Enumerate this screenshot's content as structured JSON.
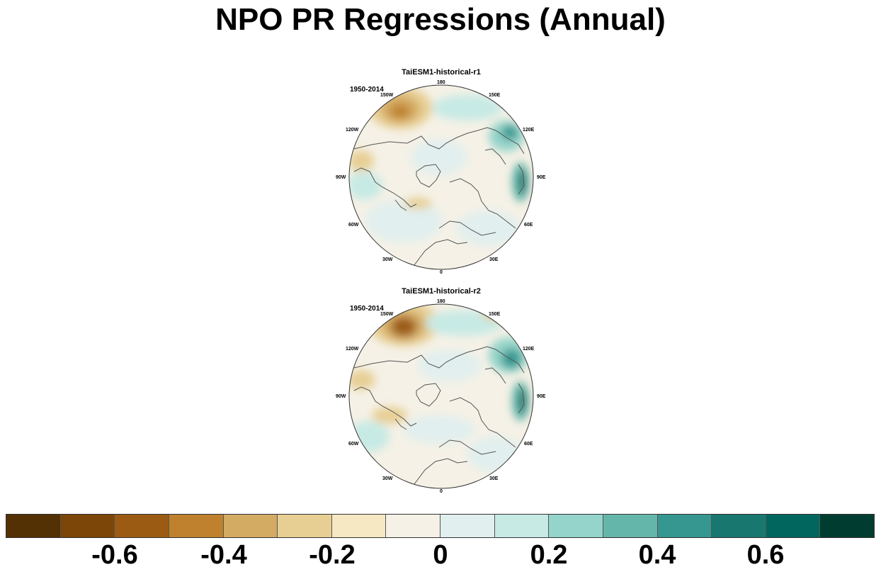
{
  "title": "NPO PR Regressions (Annual)",
  "panels": [
    {
      "title": "TaiESM1-historical-r1",
      "period": "1950-2014",
      "lon_labels": [
        "180",
        "150E",
        "120E",
        "90E",
        "60E",
        "30E",
        "0",
        "30W",
        "60W",
        "90W",
        "120W",
        "150W"
      ]
    },
    {
      "title": "TaiESM1-historical-r2",
      "period": "1950-2014",
      "lon_labels": [
        "180",
        "150E",
        "120E",
        "90E",
        "60E",
        "30E",
        "0",
        "30W",
        "60W",
        "90W",
        "120W",
        "150W"
      ]
    }
  ],
  "colorbar": {
    "colors": [
      "#543005",
      "#7b4607",
      "#9c5b13",
      "#bf812d",
      "#d4ab63",
      "#e7cf94",
      "#f6e8c3",
      "#f5f1e6",
      "#e1efee",
      "#c7eae5",
      "#95d4ca",
      "#65b6aa",
      "#35978f",
      "#187870",
      "#01665e",
      "#003c30"
    ],
    "labels": [
      "-0.6",
      "-0.4",
      "-0.2",
      "0",
      "0.2",
      "0.4",
      "0.6"
    ]
  }
}
